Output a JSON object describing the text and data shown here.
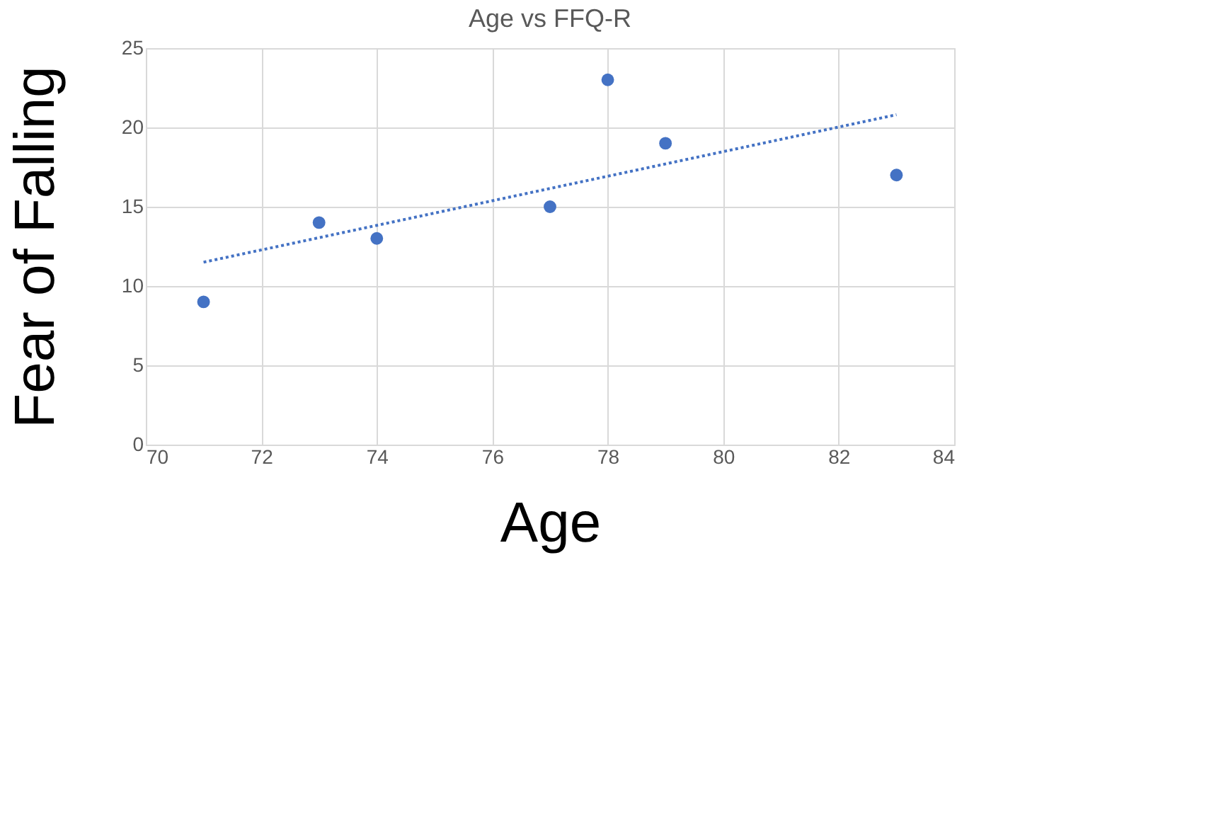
{
  "chart_data": {
    "type": "scatter",
    "title": "Age vs FFQ-R",
    "xlabel": "Age",
    "ylabel": "Fear of Falling",
    "xlim": [
      70,
      84
    ],
    "xticks": [
      70,
      72,
      74,
      76,
      78,
      80,
      82,
      84
    ],
    "ylim": [
      0,
      25
    ],
    "yticks": [
      0,
      5,
      10,
      15,
      20,
      25
    ],
    "grid": true,
    "series": [
      {
        "color": "#4472c4",
        "marker": "circle",
        "x": [
          71,
          73,
          74,
          77,
          78,
          79,
          83
        ],
        "values": [
          9,
          14,
          13,
          15,
          23,
          19,
          17
        ]
      },
      {
        "type": "line",
        "color": "#4472c4",
        "line_style": "dotted",
        "marker": "none",
        "x": [
          71,
          83
        ],
        "values": [
          11.5,
          20.8
        ]
      }
    ]
  }
}
